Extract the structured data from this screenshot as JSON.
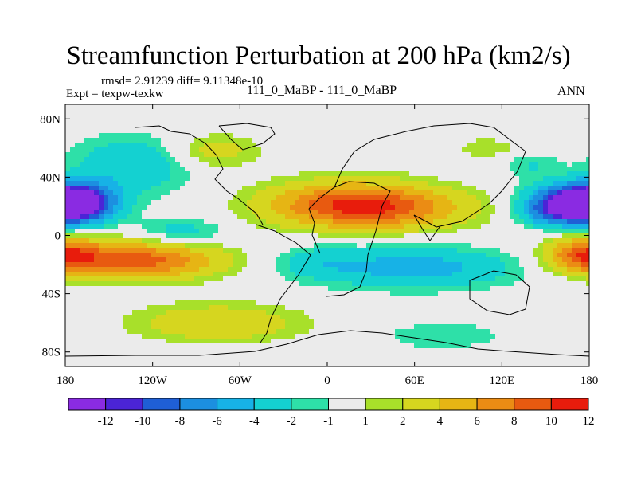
{
  "header": {
    "title": "Streamfunction Perturbation at 200 hPa (km2/s)",
    "stats": "rmsd= 2.91239 diff= 9.11348e-10",
    "expt": "Expt = texpw-texkw",
    "case": "111_0_MaBP - 111_0_MaBP",
    "season": "ANN"
  },
  "chart_data": {
    "type": "heatmap",
    "title": "Streamfunction Perturbation at 200 hPa (km2/s)",
    "xlabel": "",
    "ylabel": "",
    "xlim": [
      -180,
      180
    ],
    "ylim": [
      -90,
      90
    ],
    "x_ticks": [
      {
        "value": -180,
        "label": "180"
      },
      {
        "value": -120,
        "label": "120W"
      },
      {
        "value": -60,
        "label": "60W"
      },
      {
        "value": 0,
        "label": "0"
      },
      {
        "value": 60,
        "label": "60E"
      },
      {
        "value": 120,
        "label": "120E"
      },
      {
        "value": 180,
        "label": "180"
      }
    ],
    "y_ticks": [
      {
        "value": 80,
        "label": "80N"
      },
      {
        "value": 40,
        "label": "40N"
      },
      {
        "value": 0,
        "label": "0"
      },
      {
        "value": -40,
        "label": "40S"
      },
      {
        "value": -80,
        "label": "80S"
      }
    ],
    "colorbar": {
      "bins": [
        {
          "color": "#8A2BE2"
        },
        {
          "color": "#4B24D6"
        },
        {
          "color": "#1F5FD6"
        },
        {
          "color": "#1C8FE0"
        },
        {
          "color": "#17B2E6"
        },
        {
          "color": "#14D1D1"
        },
        {
          "color": "#2EE0A8"
        },
        {
          "color": "#EBEBEB"
        },
        {
          "color": "#A8E02A"
        },
        {
          "color": "#D6D61F"
        },
        {
          "color": "#E6B514"
        },
        {
          "color": "#EB8C14"
        },
        {
          "color": "#E85A10"
        },
        {
          "color": "#E81C0C"
        }
      ],
      "tick_labels": [
        "-12",
        "-10",
        "-8",
        "-6",
        "-4",
        "-2",
        "-1",
        "1",
        "2",
        "4",
        "6",
        "8",
        "10",
        "12"
      ]
    },
    "features": [
      {
        "lon": -173,
        "lat": 22,
        "value": -12,
        "slon": 18,
        "slat": 9
      },
      {
        "lon": 170,
        "lat": 22,
        "value": -13,
        "slon": 22,
        "slat": 9
      },
      {
        "lon": -135,
        "lat": 48,
        "value": -4,
        "slon": 28,
        "slat": 14
      },
      {
        "lon": -100,
        "lat": 2,
        "value": -3,
        "slon": 22,
        "slat": 7
      },
      {
        "lon": -130,
        "lat": -17,
        "value": 9,
        "slon": 40,
        "slat": 9
      },
      {
        "lon": 178,
        "lat": -13,
        "value": 8,
        "slon": 18,
        "slat": 8
      },
      {
        "lon": 15,
        "lat": 22,
        "value": 7,
        "slon": 40,
        "slat": 11
      },
      {
        "lon": 40,
        "lat": 18,
        "value": 5,
        "slon": 45,
        "slat": 10
      },
      {
        "lon": -78,
        "lat": 58,
        "value": 3,
        "slon": 22,
        "slat": 8
      },
      {
        "lon": 60,
        "lat": -22,
        "value": -5,
        "slon": 50,
        "slat": 10
      },
      {
        "lon": -8,
        "lat": -18,
        "value": -2,
        "slon": 20,
        "slat": 8
      },
      {
        "lon": -75,
        "lat": -60,
        "value": 4,
        "slon": 40,
        "slat": 9
      },
      {
        "lon": 80,
        "lat": -69,
        "value": -2,
        "slon": 30,
        "slat": 7
      },
      {
        "lon": 140,
        "lat": 48,
        "value": -2,
        "slon": 14,
        "slat": 6
      },
      {
        "lon": 110,
        "lat": 60,
        "value": 2,
        "slon": 14,
        "slat": 5
      },
      {
        "lon": 150,
        "lat": 15,
        "value": -3,
        "slon": 14,
        "slat": 6
      }
    ]
  }
}
